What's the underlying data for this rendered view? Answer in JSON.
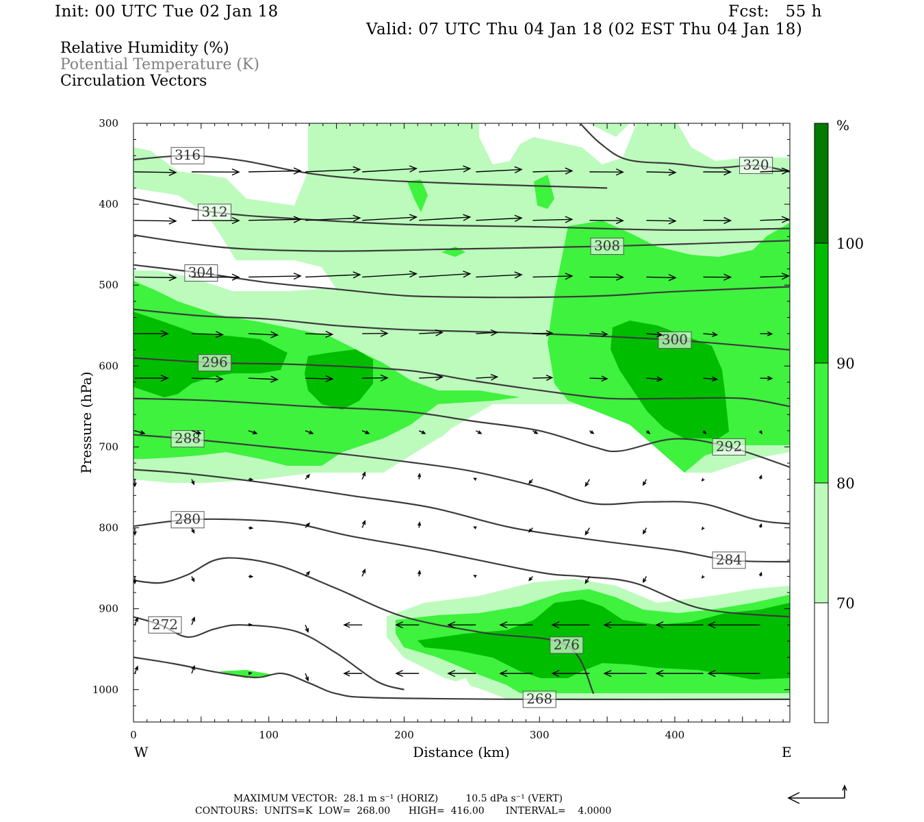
{
  "header": {
    "init": "Init: 00 UTC Tue 02 Jan 18",
    "fcst": "Fcst:   55 h",
    "valid": "Valid: 07 UTC Thu 04 Jan 18 (02 EST Thu 04 Jan 18)"
  },
  "legend": {
    "rh": "Relative Humidity (%)",
    "theta": "Potential Temperature (K)",
    "vectors": "Circulation Vectors"
  },
  "footer": {
    "max_vector": "MAXIMUM VECTOR:  28.1 m s⁻¹ (HORIZ)         10.5 dPa s⁻¹ (VERT)",
    "contours": "CONTOURS:  UNITS=K  LOW=  268.00      HIGH=  416.00       INTERVAL=    4.0000"
  },
  "colors": {
    "rh_70_80": "#bdfbbd",
    "rh_80_90": "#3ef23e",
    "rh_90_100": "#00bd00",
    "rh_100": "#007a00",
    "contour": "#3b3b3b",
    "vector": "#000000",
    "label_theta": "#808080"
  },
  "chart_data": {
    "type": "cross-section",
    "xlabel": "Distance (km)",
    "ylabel": "Pressure (hPa)",
    "xlim": [
      0,
      485
    ],
    "ylim": [
      1040,
      300
    ],
    "x_ticks": [
      0,
      100,
      200,
      300,
      400
    ],
    "y_ticks": [
      300,
      400,
      500,
      600,
      700,
      800,
      900,
      1000
    ],
    "x_end_labels": {
      "left": "W",
      "right": "E"
    },
    "colorbar": {
      "unit": "%",
      "levels": [
        70,
        80,
        90,
        100
      ]
    },
    "theta_contours": [
      {
        "label": "316",
        "points": [
          [
            0,
            345
          ],
          [
            40,
            340
          ],
          [
            80,
            346
          ],
          [
            130,
            362
          ],
          [
            180,
            370
          ],
          [
            250,
            375
          ],
          [
            310,
            378
          ],
          [
            350,
            380
          ]
        ]
      },
      {
        "label": "320",
        "points": [
          [
            330,
            300
          ],
          [
            345,
            325
          ],
          [
            365,
            345
          ],
          [
            400,
            350
          ],
          [
            430,
            355
          ],
          [
            460,
            352
          ],
          [
            485,
            360
          ]
        ]
      },
      {
        "label": "312",
        "points": [
          [
            0,
            393
          ],
          [
            60,
            410
          ],
          [
            120,
            418
          ],
          [
            200,
            425
          ],
          [
            300,
            428
          ],
          [
            400,
            432
          ],
          [
            485,
            430
          ]
        ]
      },
      {
        "label": "308",
        "points": [
          [
            0,
            438
          ],
          [
            40,
            448
          ],
          [
            80,
            455
          ],
          [
            150,
            458
          ],
          [
            250,
            455
          ],
          [
            350,
            452
          ],
          [
            485,
            445
          ]
        ]
      },
      {
        "label": "304",
        "points": [
          [
            0,
            475
          ],
          [
            50,
            485
          ],
          [
            100,
            497
          ],
          [
            150,
            505
          ],
          [
            200,
            513
          ],
          [
            250,
            515
          ],
          [
            300,
            515
          ],
          [
            350,
            513
          ],
          [
            400,
            508
          ],
          [
            485,
            502
          ]
        ]
      },
      {
        "label": "300",
        "points": [
          [
            0,
            530
          ],
          [
            50,
            538
          ],
          [
            100,
            542
          ],
          [
            150,
            550
          ],
          [
            200,
            555
          ],
          [
            300,
            560
          ],
          [
            400,
            568
          ],
          [
            485,
            580
          ]
        ]
      },
      {
        "label": "296",
        "points": [
          [
            0,
            590
          ],
          [
            60,
            596
          ],
          [
            120,
            598
          ],
          [
            200,
            605
          ],
          [
            250,
            618
          ],
          [
            300,
            630
          ],
          [
            350,
            640
          ],
          [
            400,
            640
          ],
          [
            450,
            640
          ],
          [
            485,
            650
          ]
        ]
      },
      {
        "label": "292",
        "points": [
          [
            0,
            640
          ],
          [
            60,
            643
          ],
          [
            130,
            650
          ],
          [
            200,
            656
          ],
          [
            250,
            668
          ],
          [
            300,
            680
          ],
          [
            340,
            700
          ],
          [
            360,
            705
          ],
          [
            400,
            690
          ],
          [
            440,
            700
          ],
          [
            485,
            725
          ]
        ]
      },
      {
        "label": "288",
        "points": [
          [
            0,
            685
          ],
          [
            40,
            690
          ],
          [
            100,
            700
          ],
          [
            150,
            708
          ],
          [
            200,
            718
          ],
          [
            250,
            730
          ],
          [
            300,
            750
          ],
          [
            340,
            770
          ],
          [
            380,
            768
          ],
          [
            420,
            770
          ],
          [
            460,
            790
          ],
          [
            485,
            795
          ]
        ]
      },
      {
        "label": "284",
        "points": [
          [
            0,
            728
          ],
          [
            40,
            733
          ],
          [
            100,
            745
          ],
          [
            160,
            760
          ],
          [
            220,
            775
          ],
          [
            280,
            800
          ],
          [
            340,
            815
          ],
          [
            400,
            828
          ],
          [
            440,
            840
          ],
          [
            485,
            842
          ]
        ]
      },
      {
        "label": "280",
        "points": [
          [
            0,
            798
          ],
          [
            40,
            790
          ],
          [
            80,
            790
          ],
          [
            120,
            795
          ],
          [
            160,
            810
          ],
          [
            220,
            828
          ],
          [
            300,
            855
          ],
          [
            330,
            860
          ],
          [
            370,
            868
          ],
          [
            420,
            900
          ],
          [
            485,
            910
          ]
        ]
      },
      {
        "label": "276",
        "points": [
          [
            0,
            865
          ],
          [
            20,
            868
          ],
          [
            40,
            858
          ],
          [
            60,
            840
          ],
          [
            80,
            838
          ],
          [
            110,
            848
          ],
          [
            150,
            875
          ],
          [
            200,
            910
          ],
          [
            260,
            930
          ],
          [
            320,
            945
          ],
          [
            340,
            1005
          ]
        ]
      },
      {
        "label": "272",
        "points": [
          [
            0,
            910
          ],
          [
            20,
            920
          ],
          [
            40,
            935
          ],
          [
            60,
            925
          ],
          [
            80,
            920
          ],
          [
            120,
            928
          ],
          [
            150,
            955
          ],
          [
            180,
            990
          ],
          [
            200,
            1000
          ]
        ]
      },
      {
        "label": "268",
        "points": [
          [
            0,
            960
          ],
          [
            30,
            968
          ],
          [
            60,
            978
          ],
          [
            90,
            985
          ],
          [
            110,
            980
          ],
          [
            130,
            992
          ],
          [
            150,
            1005
          ],
          [
            180,
            1010
          ],
          [
            300,
            1012
          ],
          [
            485,
            1012
          ]
        ]
      }
    ],
    "max_vector": {
      "horiz": 28.1,
      "horiz_unit": "m s-1",
      "vert": 10.5,
      "vert_unit": "dPa s-1"
    },
    "contour_info": {
      "units": "K",
      "low": 268.0,
      "high": 416.0,
      "interval": 4.0
    }
  }
}
